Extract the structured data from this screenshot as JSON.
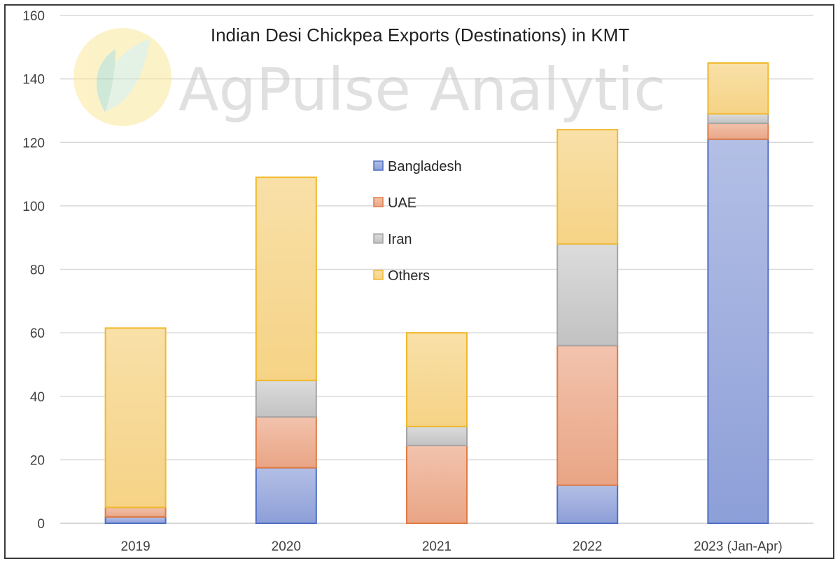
{
  "chart_data": {
    "type": "bar",
    "stacked": true,
    "title": "Indian Desi Chickpea Exports (Destinations) in KMT",
    "categories": [
      "2019",
      "2020",
      "2021",
      "2022",
      "2023 (Jan-Apr)"
    ],
    "series": [
      {
        "name": "Bangladesh",
        "values": [
          2,
          17.5,
          0,
          12,
          121
        ],
        "color": "#8ea0d8"
      },
      {
        "name": "UAE",
        "values": [
          3,
          16,
          24.5,
          44,
          5
        ],
        "color": "#eba88a"
      },
      {
        "name": "Iran",
        "values": [
          0,
          11.5,
          6,
          32,
          3
        ],
        "color": "#c9c9c9"
      },
      {
        "name": "Others",
        "values": [
          56.5,
          64,
          29.5,
          36,
          16
        ],
        "color": "#f7d68a"
      }
    ],
    "series_borders": [
      "#4f6fc4",
      "#e07b46",
      "#a5a5a5",
      "#f1b92c"
    ],
    "ylim": [
      0,
      160
    ],
    "yticks": [
      "0",
      "20",
      "40",
      "60",
      "80",
      "100",
      "120",
      "140",
      "160"
    ],
    "grid": true,
    "legend_position": "center",
    "xlabel": "",
    "ylabel": ""
  },
  "watermark": {
    "text": "AgPulse Analytic",
    "logo": "leaf-logo-icon"
  }
}
